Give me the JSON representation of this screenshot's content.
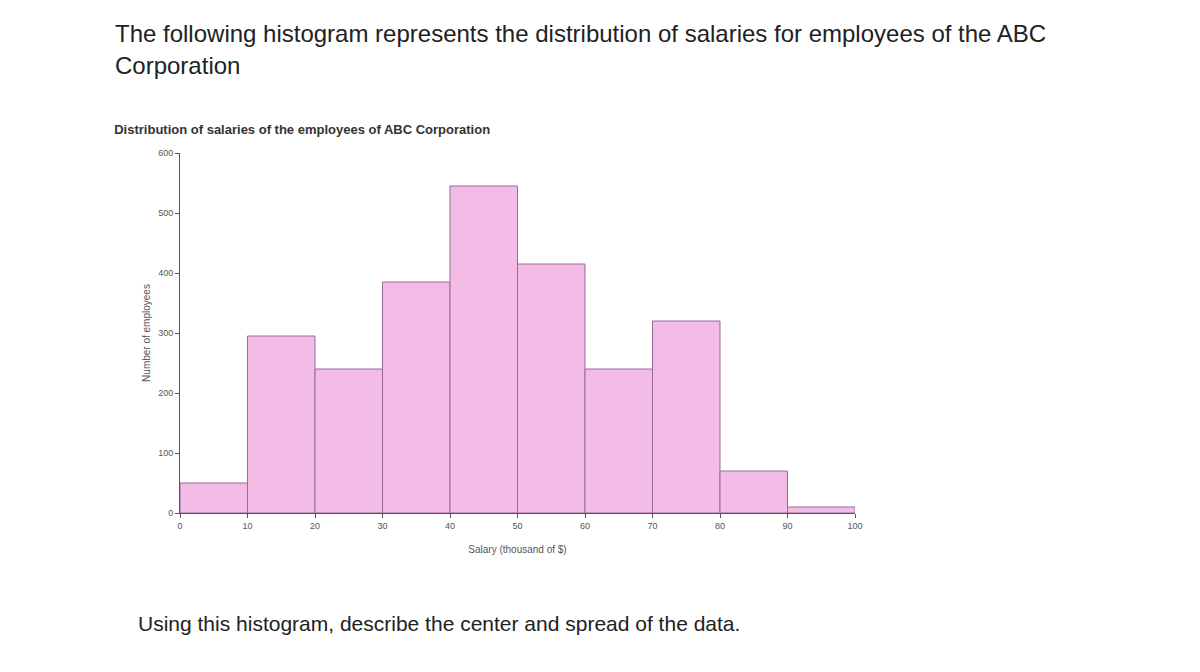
{
  "page": {
    "heading": "The following histogram represents the distribution of salaries for employees of the ABC Corporation",
    "question": "Using this histogram, describe the center and spread of the data."
  },
  "chart_data": {
    "type": "histogram",
    "title": "Distribution of salaries of the employees of ABC Corporation",
    "x_label": "Salary (thousand of $)",
    "y_label": "Number of employees",
    "bins": [
      0,
      10,
      20,
      30,
      40,
      50,
      60,
      70,
      80,
      90,
      100
    ],
    "values": [
      50,
      295,
      240,
      385,
      545,
      415,
      240,
      320,
      70,
      10
    ],
    "color": "#f2bce6",
    "xlim": [
      0,
      100
    ],
    "xticks": [
      0,
      10,
      20,
      30,
      40,
      50,
      60,
      70,
      80,
      90,
      100
    ],
    "ylim": [
      0,
      600
    ],
    "yticks": [
      0,
      100,
      200,
      300,
      400,
      500,
      600
    ],
    "grid": false
  }
}
